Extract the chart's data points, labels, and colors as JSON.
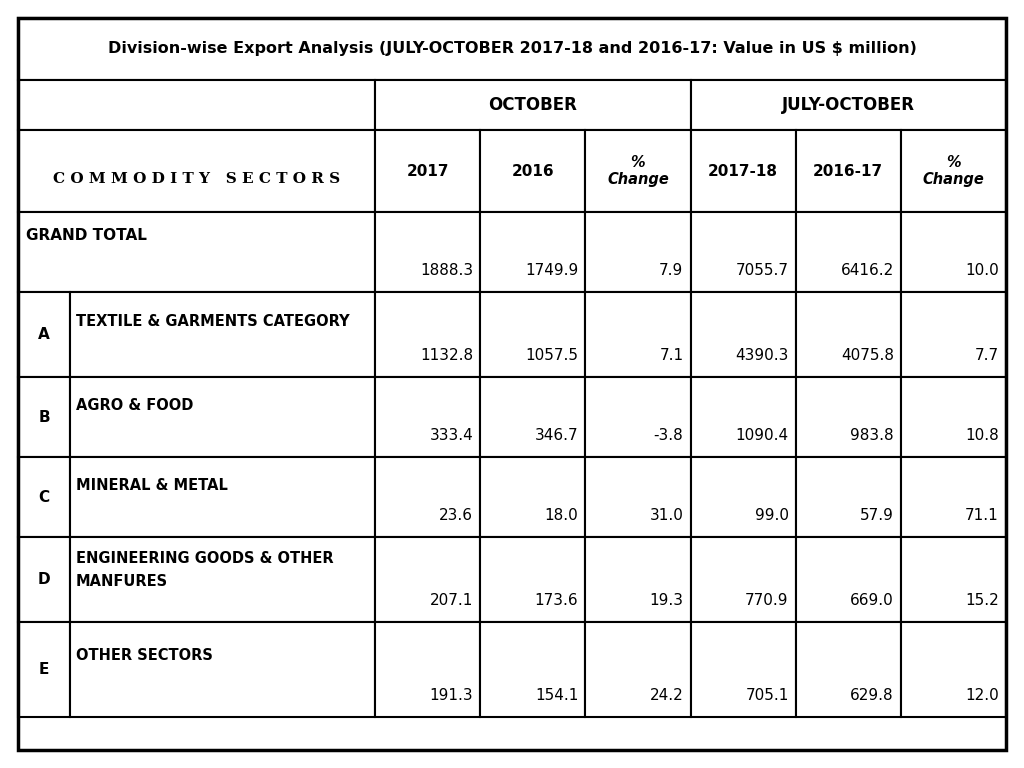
{
  "title": "Division-wise Export Analysis (JULY-OCTOBER 2017-18 and 2016-17: Value in US $ million)",
  "commodity_label": "C O M M O D I T Y   S E C T O R S",
  "rows": [
    {
      "label": "GRAND TOTAL",
      "sublabel": "",
      "letter": "",
      "grand_total": true,
      "oct_2017": "1888.3",
      "oct_2016": "1749.9",
      "oct_pct": "7.9",
      "jul_2017": "7055.7",
      "jul_2016": "6416.2",
      "jul_pct": "10.0"
    },
    {
      "label": "TEXTILE & GARMENTS CATEGORY",
      "sublabel": "",
      "letter": "A",
      "grand_total": false,
      "oct_2017": "1132.8",
      "oct_2016": "1057.5",
      "oct_pct": "7.1",
      "jul_2017": "4390.3",
      "jul_2016": "4075.8",
      "jul_pct": "7.7"
    },
    {
      "label": "AGRO & FOOD",
      "sublabel": "",
      "letter": "B",
      "grand_total": false,
      "oct_2017": "333.4",
      "oct_2016": "346.7",
      "oct_pct": "-3.8",
      "jul_2017": "1090.4",
      "jul_2016": "983.8",
      "jul_pct": "10.8"
    },
    {
      "label": "MINERAL & METAL",
      "sublabel": "",
      "letter": "C",
      "grand_total": false,
      "oct_2017": "23.6",
      "oct_2016": "18.0",
      "oct_pct": "31.0",
      "jul_2017": "99.0",
      "jul_2016": "57.9",
      "jul_pct": "71.1"
    },
    {
      "label": "ENGINEERING GOODS & OTHER",
      "sublabel": "MANFURES",
      "letter": "D",
      "grand_total": false,
      "oct_2017": "207.1",
      "oct_2016": "173.6",
      "oct_pct": "19.3",
      "jul_2017": "770.9",
      "jul_2016": "669.0",
      "jul_pct": "15.2"
    },
    {
      "label": "OTHER SECTORS",
      "sublabel": "",
      "letter": "E",
      "grand_total": false,
      "oct_2017": "191.3",
      "oct_2016": "154.1",
      "oct_pct": "24.2",
      "jul_2017": "705.1",
      "jul_2016": "629.8",
      "jul_pct": "12.0"
    }
  ],
  "text_color": "#000000",
  "lw": 1.5
}
